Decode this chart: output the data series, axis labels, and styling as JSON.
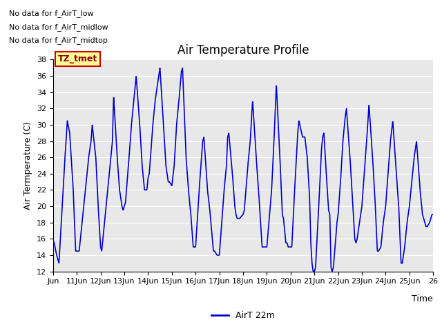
{
  "title": "Air Temperature Profile",
  "xlabel": "Time",
  "ylabel": "Air Termperature (C)",
  "legend_label": "AirT 22m",
  "legend_color": "#0000cc",
  "line_color": "#0000cc",
  "plot_bg_color": "#e8e8e8",
  "ylim": [
    12,
    38
  ],
  "yticks": [
    12,
    14,
    16,
    18,
    20,
    22,
    24,
    26,
    28,
    30,
    32,
    34,
    36,
    38
  ],
  "annotations": [
    "No data for f_AirT_low",
    "No data for f_AirT_midlow",
    "No data for f_AirT_midtop"
  ],
  "tz_label": "TZ_tmet",
  "x_tick_labels": [
    "Jun",
    "11Jun",
    "12Jun",
    "13Jun",
    "14Jun",
    "15Jun",
    "16Jun",
    "17Jun",
    "18Jun",
    "19Jun",
    "20Jun",
    "21Jun",
    "22Jun",
    "23Jun",
    "24Jun",
    "25Jun",
    "26"
  ],
  "xlim": [
    10,
    26
  ],
  "key_points": [
    [
      10.0,
      15.8
    ],
    [
      10.05,
      15.5
    ],
    [
      10.15,
      14.0
    ],
    [
      10.25,
      13.0
    ],
    [
      10.5,
      26.0
    ],
    [
      10.55,
      28.0
    ],
    [
      10.6,
      30.5
    ],
    [
      10.7,
      29.0
    ],
    [
      10.85,
      22.0
    ],
    [
      10.95,
      14.5
    ],
    [
      11.0,
      14.5
    ],
    [
      11.1,
      14.5
    ],
    [
      11.5,
      26.0
    ],
    [
      11.6,
      28.0
    ],
    [
      11.65,
      30.0
    ],
    [
      11.8,
      26.0
    ],
    [
      11.9,
      20.0
    ],
    [
      12.0,
      15.0
    ],
    [
      12.05,
      14.5
    ],
    [
      12.4,
      25.0
    ],
    [
      12.5,
      28.0
    ],
    [
      12.55,
      33.5
    ],
    [
      12.7,
      26.0
    ],
    [
      12.8,
      22.0
    ],
    [
      12.9,
      20.0
    ],
    [
      12.95,
      19.5
    ],
    [
      13.0,
      20.0
    ],
    [
      13.05,
      20.5
    ],
    [
      13.2,
      26.0
    ],
    [
      13.3,
      30.0
    ],
    [
      13.4,
      33.0
    ],
    [
      13.5,
      36.0
    ],
    [
      13.65,
      30.0
    ],
    [
      13.75,
      25.0
    ],
    [
      13.85,
      22.0
    ],
    [
      13.95,
      22.0
    ],
    [
      14.0,
      23.5
    ],
    [
      14.05,
      24.0
    ],
    [
      14.2,
      30.0
    ],
    [
      14.3,
      33.0
    ],
    [
      14.4,
      35.0
    ],
    [
      14.5,
      37.0
    ],
    [
      14.65,
      30.0
    ],
    [
      14.75,
      25.0
    ],
    [
      14.85,
      23.0
    ],
    [
      14.9,
      23.0
    ],
    [
      15.0,
      22.5
    ],
    [
      15.1,
      25.0
    ],
    [
      15.2,
      30.0
    ],
    [
      15.3,
      33.0
    ],
    [
      15.4,
      36.5
    ],
    [
      15.45,
      37.0
    ],
    [
      15.6,
      26.0
    ],
    [
      15.7,
      22.0
    ],
    [
      15.8,
      19.0
    ],
    [
      15.9,
      15.0
    ],
    [
      15.95,
      15.0
    ],
    [
      16.0,
      15.0
    ],
    [
      16.15,
      22.0
    ],
    [
      16.2,
      24.0
    ],
    [
      16.3,
      28.0
    ],
    [
      16.35,
      28.5
    ],
    [
      16.5,
      22.0
    ],
    [
      16.6,
      19.5
    ],
    [
      16.75,
      14.5
    ],
    [
      16.8,
      14.5
    ],
    [
      16.9,
      14.0
    ],
    [
      16.95,
      14.0
    ],
    [
      17.0,
      14.0
    ],
    [
      17.2,
      22.0
    ],
    [
      17.3,
      25.0
    ],
    [
      17.35,
      28.5
    ],
    [
      17.4,
      29.0
    ],
    [
      17.55,
      24.0
    ],
    [
      17.65,
      20.0
    ],
    [
      17.7,
      19.0
    ],
    [
      17.75,
      18.5
    ],
    [
      17.85,
      18.5
    ],
    [
      18.0,
      19.0
    ],
    [
      18.05,
      19.5
    ],
    [
      18.2,
      25.0
    ],
    [
      18.3,
      28.0
    ],
    [
      18.4,
      33.0
    ],
    [
      18.55,
      26.0
    ],
    [
      18.65,
      22.0
    ],
    [
      18.8,
      15.0
    ],
    [
      18.85,
      15.0
    ],
    [
      18.95,
      15.0
    ],
    [
      19.0,
      15.0
    ],
    [
      19.1,
      18.5
    ],
    [
      19.2,
      22.0
    ],
    [
      19.3,
      28.0
    ],
    [
      19.4,
      35.0
    ],
    [
      19.55,
      26.0
    ],
    [
      19.65,
      19.0
    ],
    [
      19.7,
      18.5
    ],
    [
      19.8,
      15.5
    ],
    [
      19.85,
      15.5
    ],
    [
      19.9,
      15.0
    ],
    [
      20.0,
      15.0
    ],
    [
      20.05,
      15.0
    ],
    [
      20.1,
      18.0
    ],
    [
      20.15,
      21.0
    ],
    [
      20.3,
      29.0
    ],
    [
      20.35,
      30.5
    ],
    [
      20.5,
      28.5
    ],
    [
      20.55,
      28.5
    ],
    [
      20.6,
      28.5
    ],
    [
      20.7,
      26.0
    ],
    [
      20.8,
      21.0
    ],
    [
      20.85,
      15.5
    ],
    [
      20.9,
      13.0
    ],
    [
      20.95,
      12.0
    ],
    [
      21.0,
      12.0
    ],
    [
      21.05,
      12.5
    ],
    [
      21.15,
      18.0
    ],
    [
      21.2,
      21.0
    ],
    [
      21.3,
      27.0
    ],
    [
      21.35,
      28.5
    ],
    [
      21.4,
      29.0
    ],
    [
      21.5,
      24.0
    ],
    [
      21.6,
      19.5
    ],
    [
      21.65,
      19.0
    ],
    [
      21.7,
      12.5
    ],
    [
      21.75,
      12.0
    ],
    [
      21.8,
      12.5
    ],
    [
      21.9,
      16.0
    ],
    [
      21.95,
      18.0
    ],
    [
      22.0,
      19.0
    ],
    [
      22.1,
      23.0
    ],
    [
      22.2,
      28.0
    ],
    [
      22.3,
      31.0
    ],
    [
      22.35,
      32.0
    ],
    [
      22.5,
      26.0
    ],
    [
      22.6,
      21.0
    ],
    [
      22.7,
      16.0
    ],
    [
      22.75,
      15.5
    ],
    [
      22.8,
      16.0
    ],
    [
      22.9,
      18.0
    ],
    [
      23.0,
      20.0
    ],
    [
      23.1,
      24.0
    ],
    [
      23.2,
      28.0
    ],
    [
      23.3,
      32.5
    ],
    [
      23.45,
      26.0
    ],
    [
      23.55,
      21.0
    ],
    [
      23.65,
      14.5
    ],
    [
      23.7,
      14.5
    ],
    [
      23.8,
      15.0
    ],
    [
      23.9,
      18.0
    ],
    [
      24.0,
      20.0
    ],
    [
      24.1,
      24.0
    ],
    [
      24.2,
      28.0
    ],
    [
      24.3,
      30.5
    ],
    [
      24.45,
      24.0
    ],
    [
      24.55,
      20.0
    ],
    [
      24.65,
      13.0
    ],
    [
      24.7,
      13.0
    ],
    [
      24.8,
      15.0
    ],
    [
      24.9,
      18.0
    ],
    [
      25.0,
      20.0
    ],
    [
      25.1,
      23.0
    ],
    [
      25.2,
      26.0
    ],
    [
      25.3,
      28.0
    ],
    [
      25.45,
      22.0
    ],
    [
      25.55,
      19.0
    ],
    [
      25.7,
      17.5
    ],
    [
      25.75,
      17.5
    ],
    [
      25.85,
      18.0
    ],
    [
      25.95,
      19.0
    ],
    [
      26.0,
      19.0
    ]
  ]
}
